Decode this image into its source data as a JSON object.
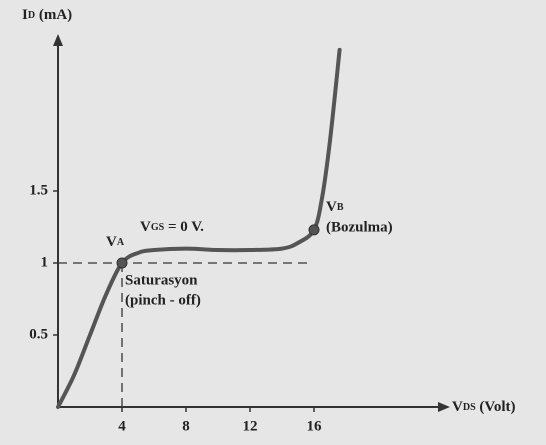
{
  "chart_data": {
    "type": "line",
    "y_label": [
      "I",
      "D",
      " (mA)"
    ],
    "x_label": [
      "V",
      "DS",
      " (Volt)"
    ],
    "curve_label": [
      "V",
      "GS",
      " = 0 V."
    ],
    "x": [
      0,
      1,
      2,
      3,
      4,
      5,
      6,
      8,
      10,
      12,
      14,
      15,
      16,
      16.5,
      17,
      17.6
    ],
    "series": [
      {
        "color": "#555555",
        "values": [
          0,
          0.22,
          0.5,
          0.78,
          1.0,
          1.07,
          1.09,
          1.1,
          1.09,
          1.09,
          1.1,
          1.14,
          1.23,
          1.45,
          1.85,
          2.48
        ]
      }
    ],
    "points": [
      {
        "name": [
          "V",
          "A"
        ],
        "x": 4,
        "y": 1,
        "notes": [
          "Saturasyon",
          "(pinch - off)"
        ]
      },
      {
        "name": [
          "V",
          "B"
        ],
        "x": 16,
        "y": 1.23,
        "notes": [
          "(Bozulma)"
        ]
      }
    ],
    "xlim": [
      0,
      24
    ],
    "ylim": [
      0,
      2.5
    ],
    "xticks": [
      4,
      8,
      12,
      16
    ],
    "yticks": [
      0.5,
      1,
      1.5
    ]
  }
}
